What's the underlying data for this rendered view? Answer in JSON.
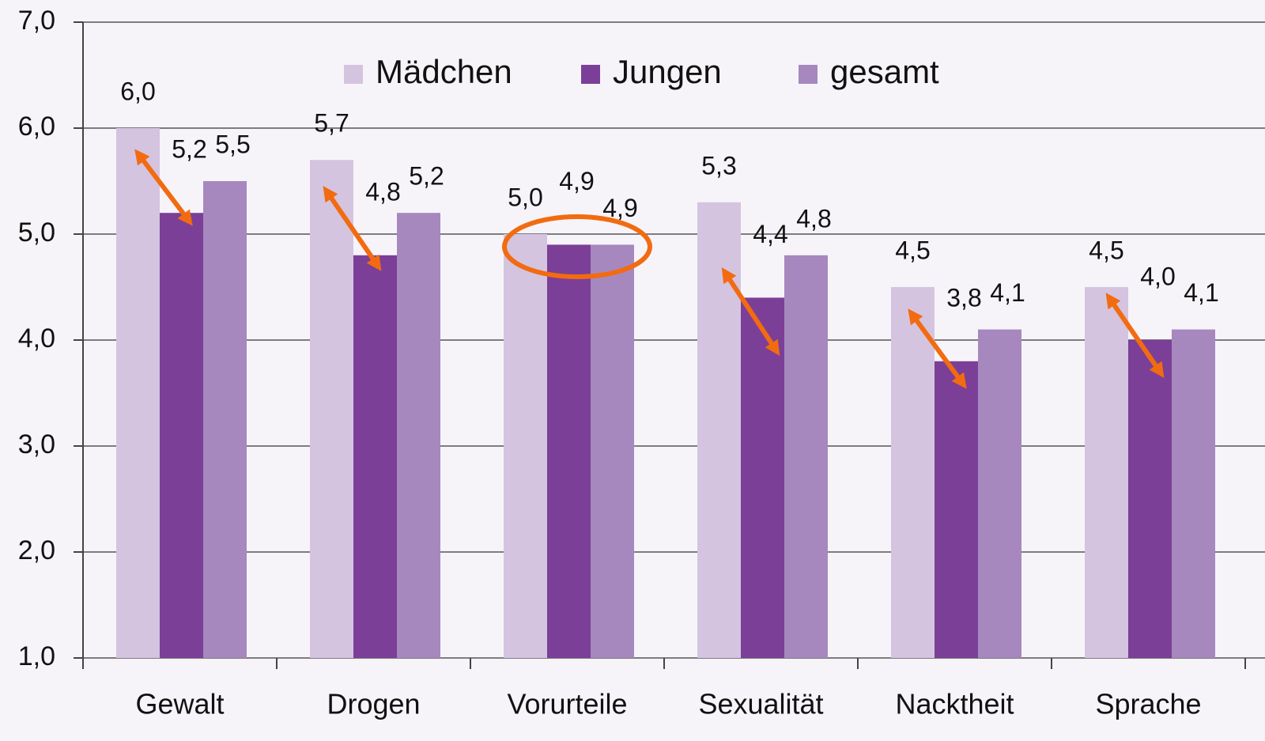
{
  "chart_data": {
    "type": "bar",
    "categories": [
      "Gewalt",
      "Drogen",
      "Vorurteile",
      "Sexualität",
      "Nacktheit",
      "Sprache"
    ],
    "series": [
      {
        "name": "Mädchen",
        "color": "#d4c4e0",
        "values": [
          6.0,
          5.7,
          5.0,
          5.3,
          4.5,
          4.5
        ],
        "value_labels": [
          "6,0",
          "5,7",
          "5,0",
          "5,3",
          "4,5",
          "4,5"
        ]
      },
      {
        "name": "Jungen",
        "color": "#7b3f98",
        "values": [
          5.2,
          4.8,
          4.9,
          4.4,
          3.8,
          4.0
        ],
        "value_labels": [
          "5,2",
          "4,8",
          "4,9",
          "4,4",
          "3,8",
          "4,0"
        ]
      },
      {
        "name": "gesamt",
        "color": "#a688bf",
        "values": [
          5.5,
          5.2,
          4.9,
          4.8,
          4.1,
          4.1
        ],
        "value_labels": [
          "5,5",
          "5,2",
          "4,9",
          "4,8",
          "4,1",
          "4,1"
        ]
      }
    ],
    "ylim": [
      1.0,
      7.0
    ],
    "yticks": [
      {
        "value": 1.0,
        "label": "1,0"
      },
      {
        "value": 2.0,
        "label": "2,0"
      },
      {
        "value": 3.0,
        "label": "3,0"
      },
      {
        "value": 4.0,
        "label": "4,0"
      },
      {
        "value": 5.0,
        "label": "5,0"
      },
      {
        "value": 6.0,
        "label": "6,0"
      },
      {
        "value": 7.0,
        "label": "7,0"
      }
    ],
    "grid": true,
    "legend": "top"
  }
}
